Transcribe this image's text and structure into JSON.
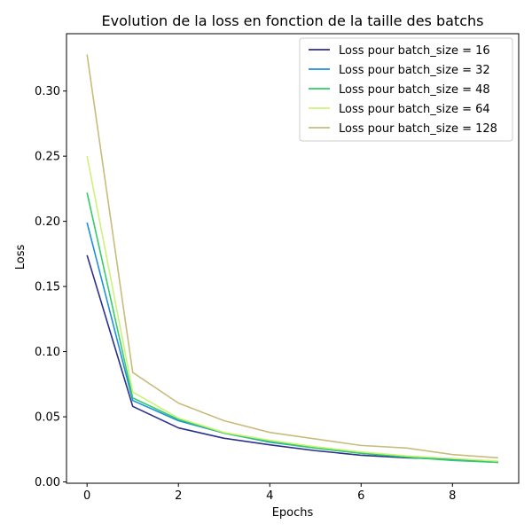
{
  "chart_data": {
    "type": "line",
    "title": "Evolution de la loss en fonction de la taille des batchs",
    "xlabel": "Epochs",
    "ylabel": "Loss",
    "x": [
      0,
      1,
      2,
      3,
      4,
      5,
      6,
      7,
      8,
      9
    ],
    "xlim": [
      -0.45,
      9.45
    ],
    "ylim": [
      -0.001,
      0.344
    ],
    "xticks": [
      0,
      2,
      4,
      6,
      8
    ],
    "xtick_labels": [
      "0",
      "2",
      "4",
      "6",
      "8"
    ],
    "yticks": [
      0.0,
      0.05,
      0.1,
      0.15,
      0.2,
      0.25,
      0.3
    ],
    "ytick_labels": [
      "0.00",
      "0.05",
      "0.10",
      "0.15",
      "0.20",
      "0.25",
      "0.30"
    ],
    "grid": false,
    "legend_position": "top-right",
    "series": [
      {
        "name": "Loss pour batch_size = 16",
        "color": "#2b2f8c",
        "values": [
          0.174,
          0.058,
          0.0415,
          0.0335,
          0.0285,
          0.024,
          0.0205,
          0.0185,
          0.0175,
          0.0155
        ]
      },
      {
        "name": "Loss pour batch_size = 32",
        "color": "#1e8fe0",
        "values": [
          0.199,
          0.0625,
          0.047,
          0.0375,
          0.0305,
          0.026,
          0.022,
          0.019,
          0.017,
          0.015
        ]
      },
      {
        "name": "Loss pour batch_size = 48",
        "color": "#33cc66",
        "values": [
          0.222,
          0.0645,
          0.048,
          0.0375,
          0.031,
          0.026,
          0.022,
          0.019,
          0.0165,
          0.015
        ]
      },
      {
        "name": "Loss pour batch_size = 64",
        "color": "#ccf27a",
        "values": [
          0.25,
          0.069,
          0.049,
          0.038,
          0.032,
          0.027,
          0.023,
          0.02,
          0.018,
          0.016
        ]
      },
      {
        "name": "Loss pour batch_size = 128",
        "color": "#c8bc7c",
        "values": [
          0.328,
          0.084,
          0.0605,
          0.047,
          0.038,
          0.033,
          0.028,
          0.026,
          0.021,
          0.0185
        ]
      }
    ]
  }
}
